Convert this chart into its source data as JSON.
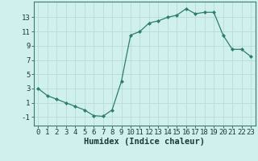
{
  "x": [
    0,
    1,
    2,
    3,
    4,
    5,
    6,
    7,
    8,
    9,
    10,
    11,
    12,
    13,
    14,
    15,
    16,
    17,
    18,
    19,
    20,
    21,
    22,
    23
  ],
  "y": [
    3,
    2,
    1.5,
    1,
    0.5,
    0,
    -0.8,
    -0.9,
    0,
    4,
    10.5,
    11,
    12.2,
    12.5,
    13,
    13.3,
    14.2,
    13.5,
    13.7,
    13.7,
    10.5,
    8.5,
    8.5,
    7.5
  ],
  "line_color": "#2d7d6e",
  "marker": "D",
  "marker_size": 2,
  "bg_color": "#cff0ec",
  "grid_color_major": "#b8dbd6",
  "grid_color_minor": "#d9f0ed",
  "xlabel": "Humidex (Indice chaleur)",
  "xlim": [
    -0.5,
    23.5
  ],
  "ylim": [
    -2.2,
    15.2
  ],
  "yticks": [
    -1,
    1,
    3,
    5,
    7,
    9,
    11,
    13
  ],
  "xlabel_fontsize": 7.5,
  "tick_fontsize": 6.5
}
